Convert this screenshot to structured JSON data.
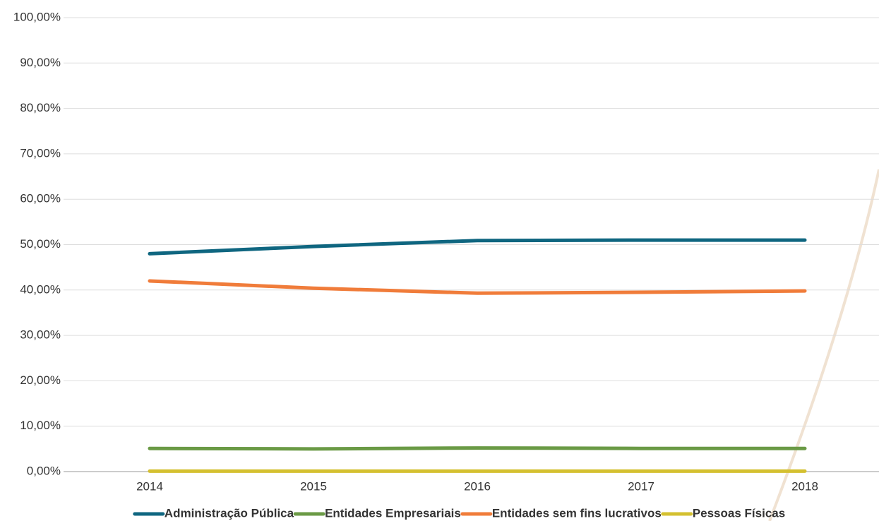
{
  "chart_data": {
    "type": "line",
    "categories": [
      "2014",
      "2015",
      "2016",
      "2017",
      "2018"
    ],
    "series": [
      {
        "name": "Administração Pública",
        "color": "#0f6680",
        "values": [
          48.0,
          49.6,
          50.9,
          51.0,
          51.0
        ]
      },
      {
        "name": "Entidades Empresariais",
        "color": "#6a9a45",
        "values": [
          5.1,
          5.0,
          5.2,
          5.1,
          5.1
        ]
      },
      {
        "name": "Entidades sem fins lucrativos",
        "color": "#f07c3a",
        "values": [
          42.0,
          40.4,
          39.3,
          39.5,
          39.8
        ]
      },
      {
        "name": "Pessoas Físicas",
        "color": "#d4c030",
        "values": [
          0.1,
          0.1,
          0.1,
          0.1,
          0.1
        ]
      }
    ],
    "ylim": [
      0,
      100
    ],
    "yticks": [
      {
        "value": 0,
        "label": "0,00%"
      },
      {
        "value": 10,
        "label": "10,00%"
      },
      {
        "value": 20,
        "label": "20,00%"
      },
      {
        "value": 30,
        "label": "30,00%"
      },
      {
        "value": 40,
        "label": "40,00%"
      },
      {
        "value": 50,
        "label": "50,00%"
      },
      {
        "value": 60,
        "label": "60,00%"
      },
      {
        "value": 70,
        "label": "70,00%"
      },
      {
        "value": 80,
        "label": "80,00%"
      },
      {
        "value": 90,
        "label": "90,00%"
      },
      {
        "value": 100,
        "label": "100,00%"
      }
    ],
    "grid": true,
    "legend": "bottom"
  }
}
